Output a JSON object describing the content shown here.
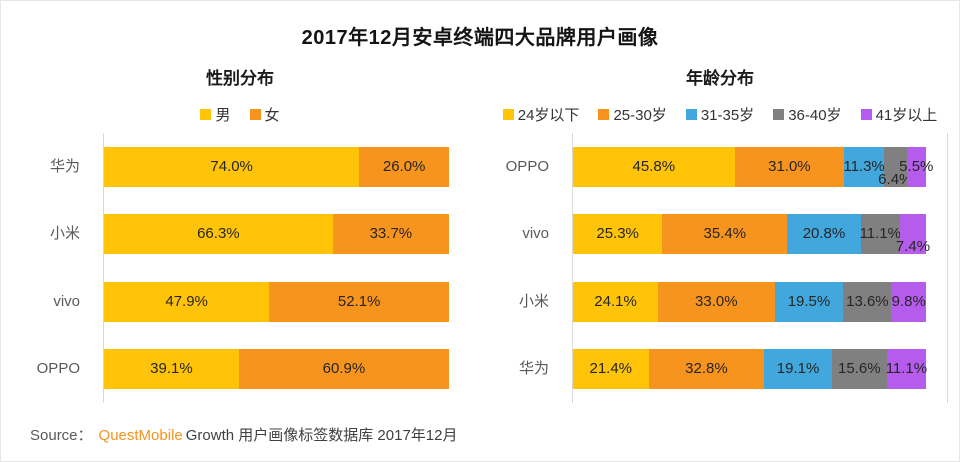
{
  "title": "2017年12月安卓终端四大品牌用户画像",
  "chart_data": [
    {
      "type": "bar",
      "orientation": "horizontal",
      "stacked": true,
      "title": "性别分布",
      "unit": "%",
      "xlim": [
        0,
        100
      ],
      "legend_position": "top",
      "categories": [
        "华为",
        "小米",
        "vivo",
        "OPPO"
      ],
      "series": [
        {
          "name": "男",
          "color": "#FFC408",
          "values": [
            74.0,
            66.3,
            47.9,
            39.1
          ]
        },
        {
          "name": "女",
          "color": "#F7941D",
          "values": [
            26.0,
            33.7,
            52.1,
            60.9
          ]
        }
      ]
    },
    {
      "type": "bar",
      "orientation": "horizontal",
      "stacked": true,
      "title": "年龄分布",
      "unit": "%",
      "xlim": [
        0,
        100
      ],
      "legend_position": "top",
      "categories": [
        "OPPO",
        "vivo",
        "小米",
        "华为"
      ],
      "series": [
        {
          "name": "24岁以下",
          "color": "#FFC408",
          "values": [
            45.8,
            25.3,
            24.1,
            21.4
          ]
        },
        {
          "name": "25-30岁",
          "color": "#F7941D",
          "values": [
            31.0,
            35.4,
            33.0,
            32.8
          ]
        },
        {
          "name": "31-35岁",
          "color": "#41A7DC",
          "values": [
            11.3,
            20.8,
            19.5,
            19.1
          ]
        },
        {
          "name": "36-40岁",
          "color": "#808080",
          "values": [
            6.4,
            11.1,
            13.6,
            15.6
          ]
        },
        {
          "name": "41岁以上",
          "color": "#B55CEC",
          "values": [
            5.5,
            7.4,
            9.8,
            11.1
          ]
        }
      ]
    }
  ],
  "footer": {
    "source_label": "Source：",
    "brand": "QuestMobile",
    "rest": "Growth 用户画像标签数据库 2017年12月"
  }
}
